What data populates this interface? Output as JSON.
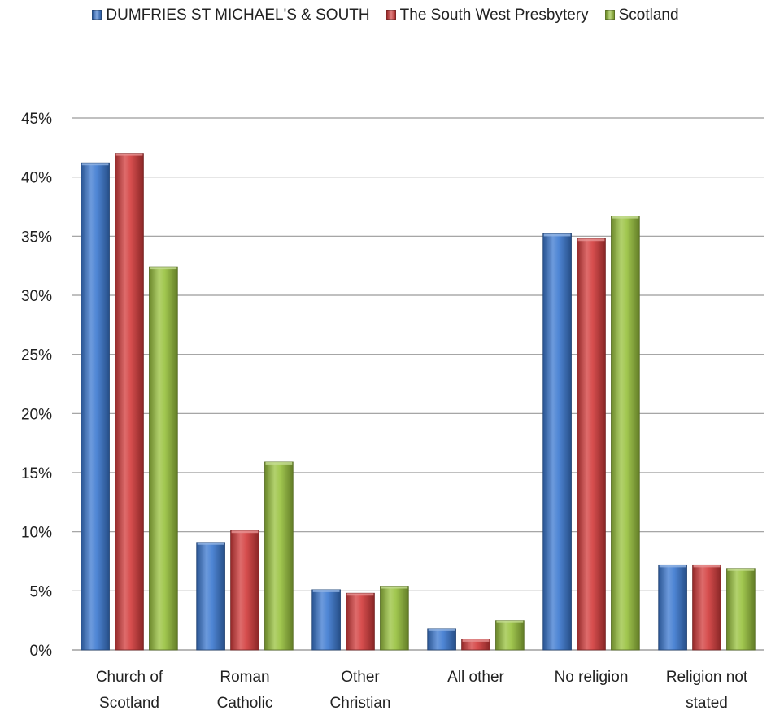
{
  "chart_data": {
    "type": "bar",
    "title": "",
    "xlabel": "",
    "ylabel": "",
    "categories": [
      [
        "Church of",
        "Scotland"
      ],
      [
        "Roman",
        "Catholic"
      ],
      [
        "Other",
        "Christian"
      ],
      [
        "All other"
      ],
      [
        "No religion"
      ],
      [
        "Religion not",
        "stated"
      ]
    ],
    "series": [
      {
        "name": "DUMFRIES ST MICHAEL'S & SOUTH",
        "color": "#3b78d0",
        "values": [
          41.2,
          9.1,
          5.1,
          1.8,
          35.2,
          7.2
        ]
      },
      {
        "name": "The South West Presbytery",
        "color": "#d33a3a",
        "values": [
          42.0,
          10.1,
          4.8,
          0.9,
          34.8,
          7.2
        ]
      },
      {
        "name": "Scotland",
        "color": "#98c13c",
        "values": [
          32.4,
          15.9,
          5.4,
          2.5,
          36.7,
          6.9
        ]
      }
    ],
    "ylim": [
      0,
      45
    ],
    "yticks": [
      "0%",
      "5%",
      "10%",
      "15%",
      "20%",
      "25%",
      "30%",
      "35%",
      "40%",
      "45%"
    ],
    "grid": true,
    "legend_position": "top"
  }
}
